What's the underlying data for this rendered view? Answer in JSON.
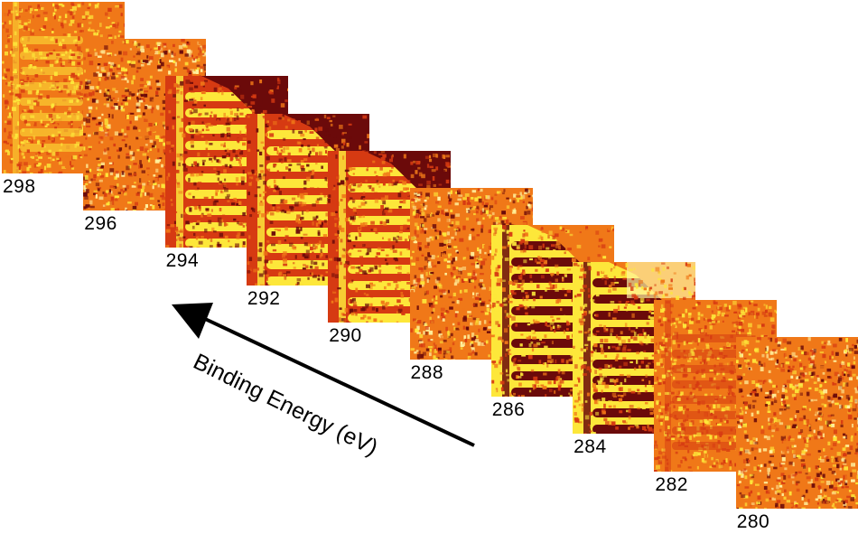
{
  "figure": {
    "axis_label": "Binding Energy (eV)",
    "palette": {
      "dark": "#6b0a0a",
      "mid": "#d63a12",
      "orange": "#f07818",
      "bright": "#fde73a",
      "pale": "#fff3a0"
    },
    "images": [
      {
        "energy": "298",
        "contrast": "weak-positive"
      },
      {
        "energy": "296",
        "contrast": "noise"
      },
      {
        "energy": "294",
        "contrast": "positive-wedge"
      },
      {
        "energy": "292",
        "contrast": "positive-wedge"
      },
      {
        "energy": "290",
        "contrast": "positive-wedge"
      },
      {
        "energy": "288",
        "contrast": "noise"
      },
      {
        "energy": "286",
        "contrast": "inverted-wedge"
      },
      {
        "energy": "284",
        "contrast": "inverted-wedge-strong"
      },
      {
        "energy": "282",
        "contrast": "weak-inverted"
      },
      {
        "energy": "280",
        "contrast": "noise"
      }
    ]
  }
}
